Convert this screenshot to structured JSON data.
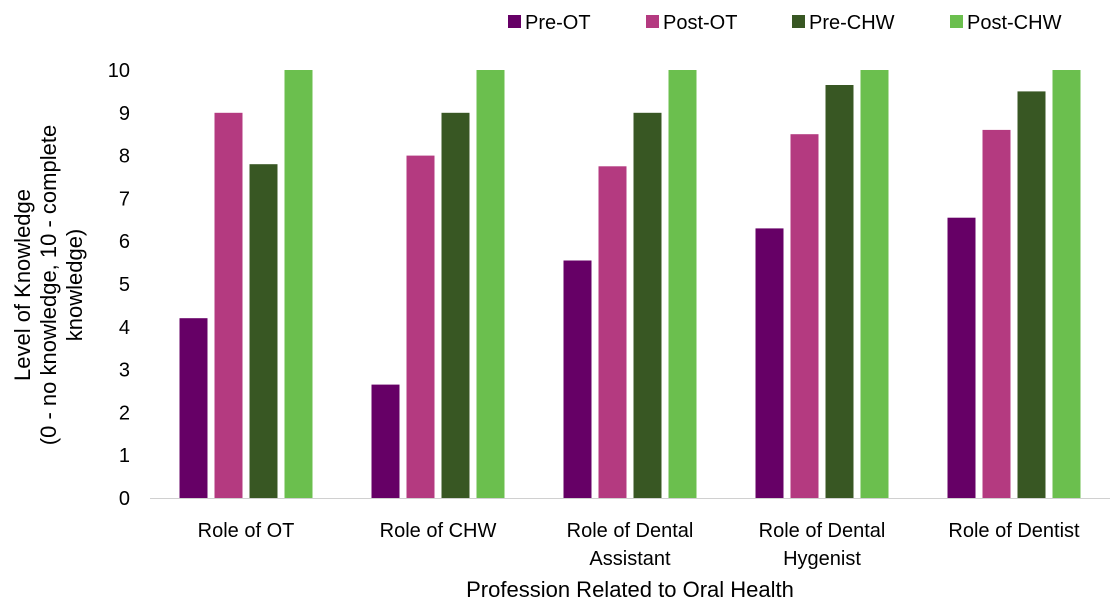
{
  "chart_data": {
    "type": "bar",
    "categories": [
      [
        "Role of OT"
      ],
      [
        "Role of CHW"
      ],
      [
        "Role of Dental",
        "Assistant"
      ],
      [
        "Role of Dental",
        "Hygenist"
      ],
      [
        "Role of Dentist"
      ]
    ],
    "series": [
      {
        "name": "Pre-OT",
        "color": "#660066",
        "values": [
          4.2,
          2.65,
          5.55,
          6.3,
          6.55
        ]
      },
      {
        "name": "Post-OT",
        "color": "#B43A80",
        "values": [
          9.0,
          8.0,
          7.75,
          8.5,
          8.6
        ]
      },
      {
        "name": "Pre-CHW",
        "color": "#385723",
        "values": [
          7.8,
          9.0,
          9.0,
          9.65,
          9.5
        ]
      },
      {
        "name": "Post-CHW",
        "color": "#6BBF4E",
        "values": [
          10,
          10,
          10,
          10,
          10
        ]
      }
    ],
    "ylabel": [
      "Level of Knowledge",
      "(0 - no knowledge, 10 - complete",
      "knowledge)"
    ],
    "xlabel": "Profession Related to Oral Health",
    "ylim": [
      0,
      10
    ],
    "yticks": [
      0,
      1,
      2,
      3,
      4,
      5,
      6,
      7,
      8,
      9,
      10
    ],
    "grid": false,
    "legend_position": "top-right"
  }
}
